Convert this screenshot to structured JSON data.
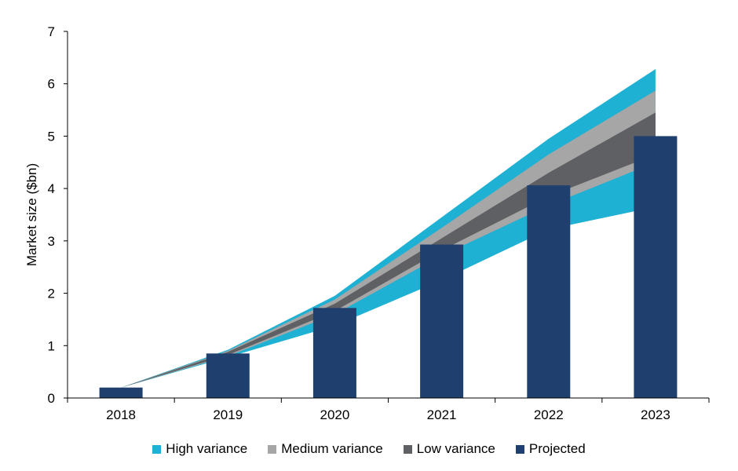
{
  "chart_data": {
    "type": "bar",
    "ylabel": "Market size ($bn)",
    "xlabel": "",
    "ylim": [
      0,
      7
    ],
    "yticks": [
      0,
      1,
      2,
      3,
      4,
      5,
      6,
      7
    ],
    "categories": [
      "2018",
      "2019",
      "2020",
      "2021",
      "2022",
      "2023"
    ],
    "series": [
      {
        "name": "Projected",
        "type": "bar",
        "color": "#1f3f6e",
        "values": [
          0.2,
          0.85,
          1.72,
          2.93,
          4.06,
          5.0
        ]
      }
    ],
    "bands": [
      {
        "name": "High variance",
        "color": "#1eb1d3",
        "lower": [
          0.2,
          0.78,
          1.38,
          2.25,
          3.22,
          3.65
        ],
        "upper": [
          0.2,
          0.92,
          1.95,
          3.45,
          4.95,
          6.28
        ]
      },
      {
        "name": "Medium variance",
        "color": "#a6a6a6",
        "lower": [
          0.2,
          0.8,
          1.6,
          2.72,
          3.68,
          4.5
        ],
        "upper": [
          0.2,
          0.9,
          1.88,
          3.25,
          4.65,
          5.87
        ]
      },
      {
        "name": "Low variance",
        "color": "#5f6063",
        "lower": [
          0.2,
          0.82,
          1.66,
          2.82,
          3.85,
          4.65
        ],
        "upper": [
          0.2,
          0.88,
          1.8,
          3.05,
          4.3,
          5.45
        ]
      }
    ],
    "legend": [
      "High variance",
      "Medium variance",
      "Low variance",
      "Projected"
    ],
    "legend_position": "bottom",
    "grid": false
  }
}
